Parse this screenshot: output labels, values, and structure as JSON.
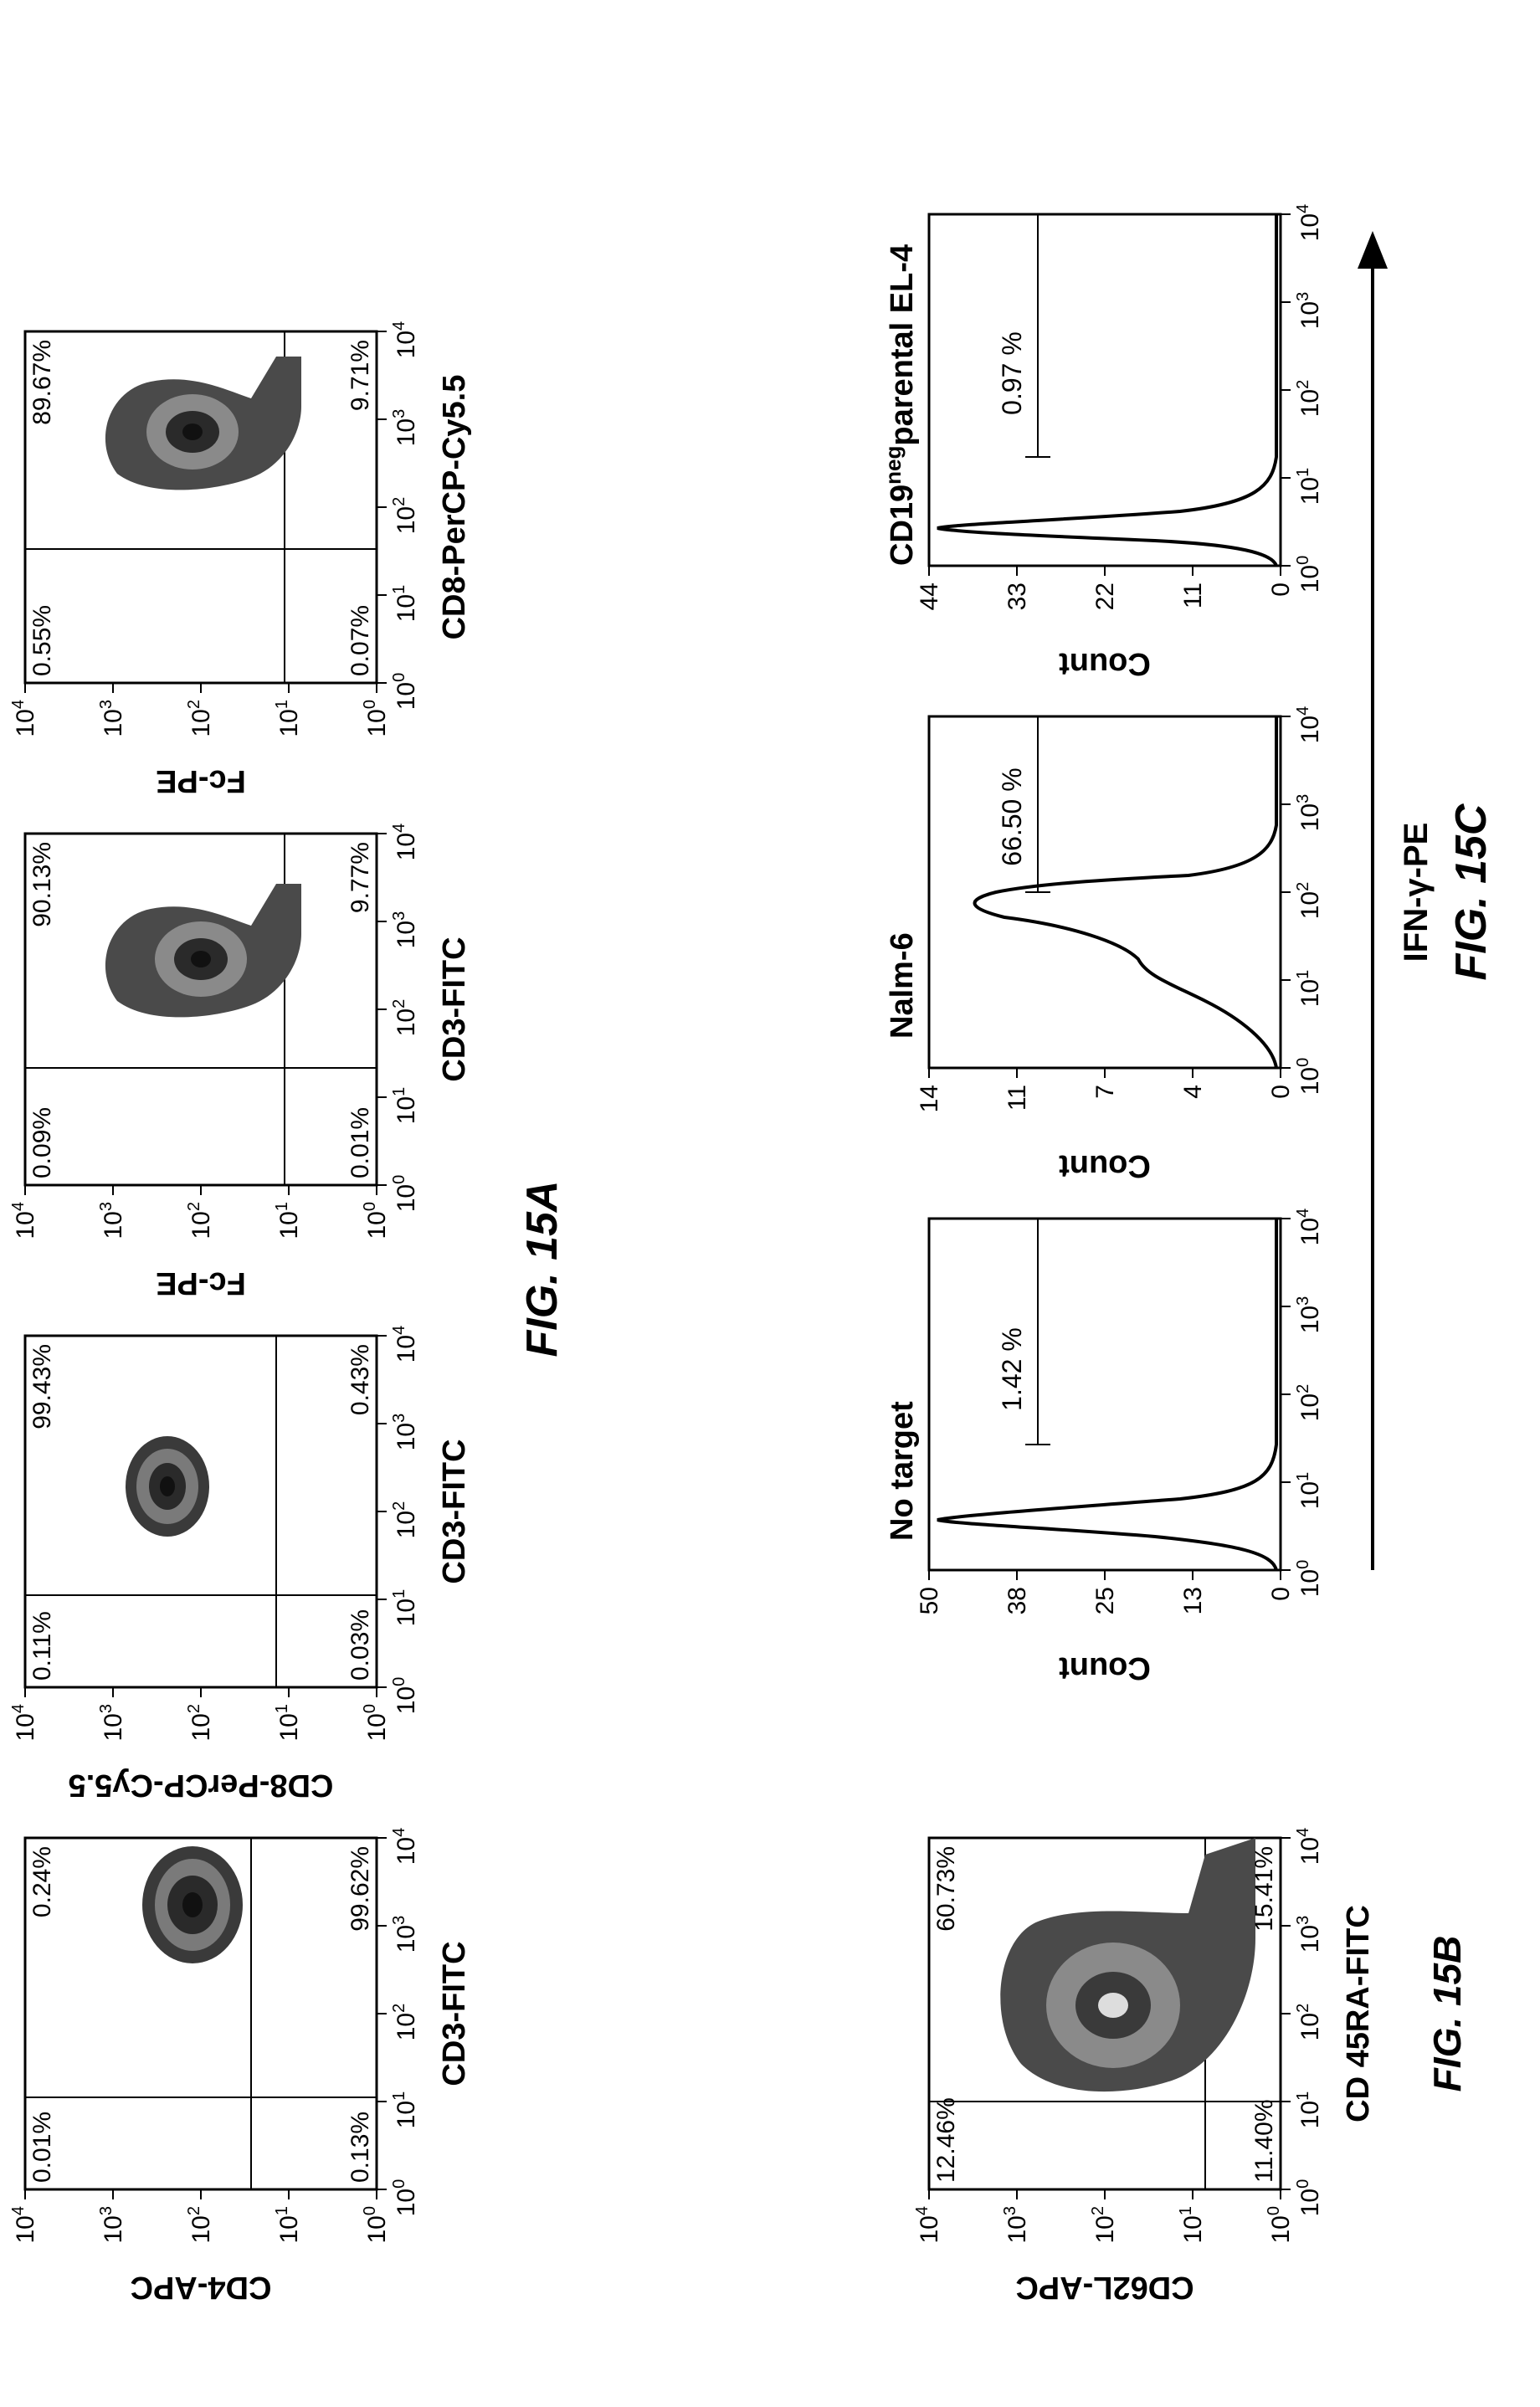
{
  "figure_labels": {
    "fig15a": "FIG. 15A",
    "fig15b": "FIG. 15B",
    "fig15c": "FIG. 15C"
  },
  "log_ticks": [
    "10",
    "10",
    "10",
    "10",
    "10"
  ],
  "log_exps": [
    "0",
    "1",
    "2",
    "3",
    "4"
  ],
  "panels_15a": [
    {
      "xlabel": "CD3-FITC",
      "ylabel": "CD4-APC",
      "quadrants": {
        "upper_left": "0.01%",
        "upper_right": "0.24%",
        "lower_left": "0.13%",
        "lower_right": "99.62%"
      }
    },
    {
      "xlabel": "CD3-FITC",
      "ylabel": "CD8-PerCP-Cy5.5",
      "quadrants": {
        "upper_left": "0.11%",
        "upper_right": "99.43%",
        "lower_left": "0.03%",
        "lower_right": "0.43%"
      }
    },
    {
      "xlabel": "CD3-FITC",
      "ylabel": "Fc-PE",
      "quadrants": {
        "upper_left": "0.09%",
        "upper_right": "90.13%",
        "lower_left": "0.01%",
        "lower_right": "9.77%"
      }
    },
    {
      "xlabel": "CD8-PerCP-Cy5.5",
      "ylabel": "Fc-PE",
      "quadrants": {
        "upper_left": "0.55%",
        "upper_right": "89.67%",
        "lower_left": "0.07%",
        "lower_right": "9.71%"
      }
    }
  ],
  "panel_15b": {
    "xlabel": "CD 45RA-FITC",
    "ylabel": "CD62L-APC",
    "quadrants": {
      "upper_left": "12.46%",
      "upper_right": "60.73%",
      "lower_left": "11.40%",
      "lower_right": "15.41%"
    }
  },
  "panels_15c": {
    "shared_xlabel": "IFN-γ-PE",
    "histograms": [
      {
        "title": "No target",
        "ylabel": "Count",
        "yticks": [
          "50",
          "38",
          "25",
          "13",
          "0"
        ],
        "gate_percent": "1.42 %"
      },
      {
        "title": "Nalm-6",
        "ylabel": "Count",
        "yticks": [
          "14",
          "11",
          "7",
          "4",
          "0"
        ],
        "gate_percent": "66.50 %"
      },
      {
        "title": "CD19",
        "title_sup": "neg",
        "title_rest": "parental EL-4",
        "ylabel": "Count",
        "yticks": [
          "44",
          "33",
          "22",
          "11",
          "0"
        ],
        "gate_percent": "0.97 %"
      }
    ]
  }
}
